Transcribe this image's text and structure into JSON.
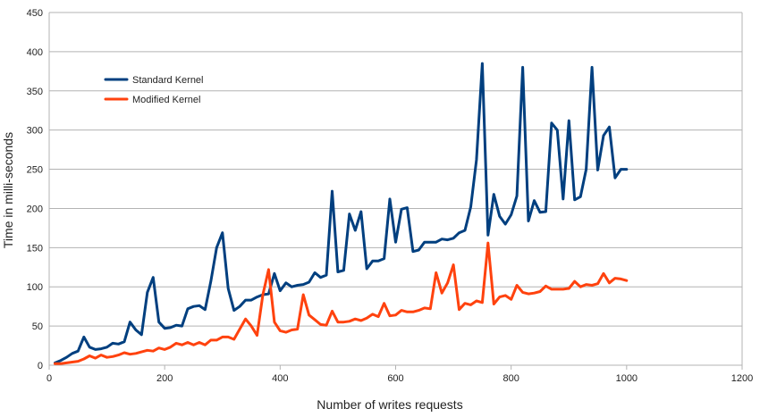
{
  "chart_data": {
    "type": "line",
    "xlabel": "Number of writes requests",
    "ylabel": "Time in milli-seconds",
    "xlim": [
      0,
      1200
    ],
    "ylim": [
      0,
      450
    ],
    "x_ticks": [
      0,
      200,
      400,
      600,
      800,
      1000,
      1200
    ],
    "y_ticks": [
      0,
      50,
      100,
      150,
      200,
      250,
      300,
      350,
      400,
      450
    ],
    "grid": "horizontal",
    "legend_position": "top-left",
    "x": [
      10,
      20,
      30,
      40,
      50,
      60,
      70,
      80,
      90,
      100,
      110,
      120,
      130,
      140,
      150,
      160,
      170,
      180,
      190,
      200,
      210,
      220,
      230,
      240,
      250,
      260,
      270,
      280,
      290,
      300,
      310,
      320,
      330,
      340,
      350,
      360,
      370,
      380,
      390,
      400,
      410,
      420,
      430,
      440,
      450,
      460,
      470,
      480,
      490,
      500,
      510,
      520,
      530,
      540,
      550,
      560,
      570,
      580,
      590,
      600,
      610,
      620,
      630,
      640,
      650,
      660,
      670,
      680,
      690,
      700,
      710,
      720,
      730,
      740,
      750,
      760,
      770,
      780,
      790,
      800,
      810,
      820,
      830,
      840,
      850,
      860,
      870,
      880,
      890,
      900,
      910,
      920,
      930,
      940,
      950,
      960,
      970,
      980,
      990,
      1000
    ],
    "series": [
      {
        "name": "Standard Kernel",
        "color": "#003f7f",
        "values": [
          3,
          6,
          10,
          15,
          18,
          36,
          23,
          20,
          21,
          23,
          28,
          27,
          30,
          55,
          45,
          39,
          93,
          112,
          55,
          47,
          48,
          51,
          50,
          72,
          75,
          76,
          71,
          107,
          150,
          169,
          98,
          70,
          75,
          83,
          83,
          87,
          90,
          91,
          117,
          95,
          105,
          100,
          102,
          103,
          106,
          118,
          112,
          115,
          222,
          119,
          121,
          193,
          172,
          196,
          123,
          133,
          133,
          136,
          212,
          157,
          199,
          201,
          145,
          147,
          157,
          157,
          157,
          161,
          160,
          162,
          169,
          172,
          202,
          262,
          385,
          166,
          218,
          190,
          180,
          192,
          216,
          380,
          184,
          210,
          195,
          196,
          309,
          300,
          212,
          312,
          211,
          215,
          250,
          380,
          249,
          293,
          304,
          239,
          250,
          250
        ]
      },
      {
        "name": "Modified Kernel",
        "color": "#ff420e",
        "values": [
          2,
          2,
          3,
          4,
          5,
          8,
          12,
          9,
          13,
          10,
          11,
          13,
          16,
          14,
          15,
          17,
          19,
          18,
          22,
          20,
          23,
          28,
          26,
          29,
          26,
          29,
          26,
          32,
          32,
          36,
          36,
          33,
          46,
          59,
          50,
          38,
          90,
          122,
          55,
          44,
          42,
          45,
          46,
          90,
          64,
          58,
          52,
          51,
          69,
          55,
          55,
          56,
          59,
          57,
          60,
          65,
          62,
          79,
          63,
          64,
          70,
          68,
          68,
          70,
          73,
          72,
          118,
          92,
          105,
          128,
          71,
          79,
          77,
          82,
          80,
          156,
          78,
          87,
          89,
          84,
          102,
          93,
          91,
          92,
          94,
          101,
          97,
          97,
          97,
          98,
          107,
          100,
          103,
          102,
          104,
          117,
          105,
          111,
          110,
          108
        ]
      }
    ]
  }
}
